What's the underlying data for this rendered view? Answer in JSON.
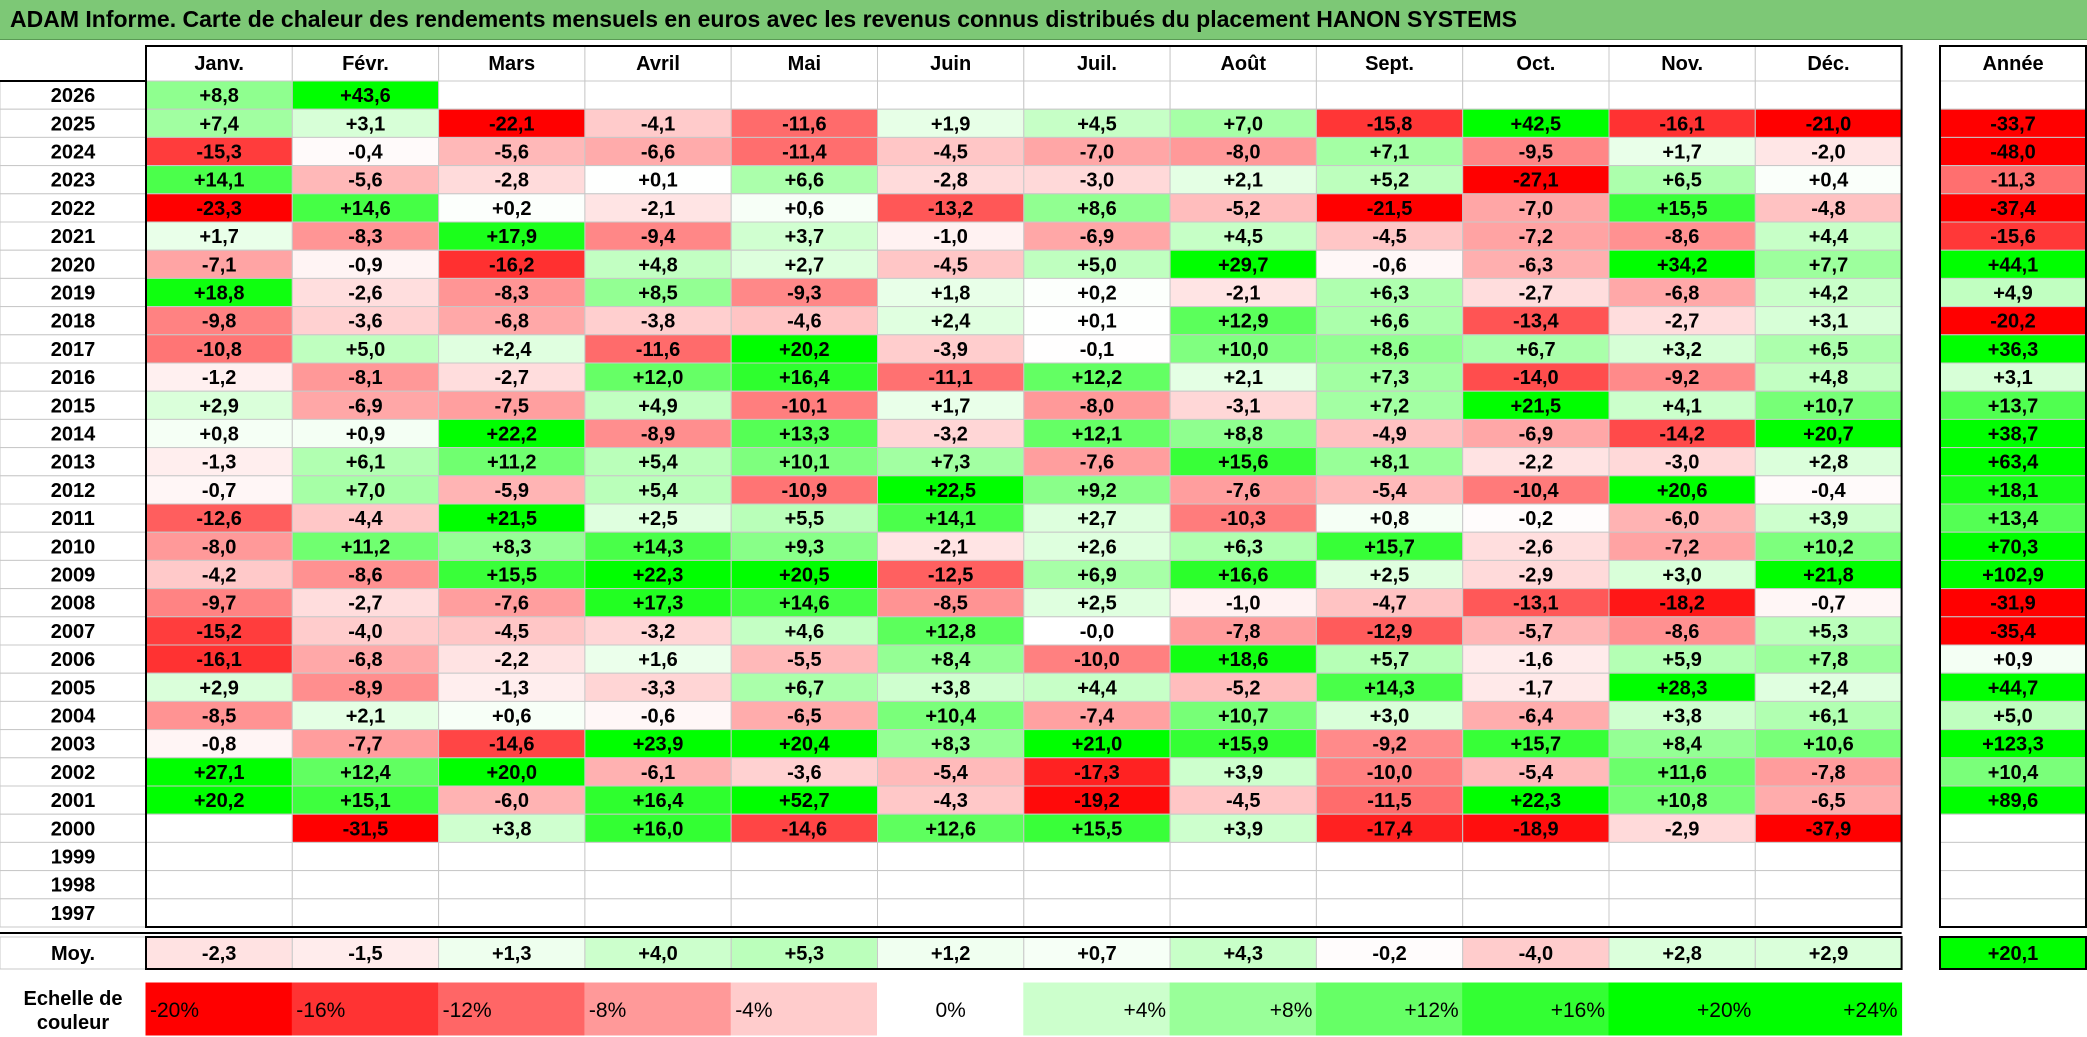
{
  "title": "ADAM Informe. Carte de chaleur des rendements mensuels en euros avec les revenus connus distribués du placement HANON SYSTEMS",
  "chart_data": {
    "type": "heatmap",
    "columns": [
      "Janv.",
      "Févr.",
      "Mars",
      "Avril",
      "Mai",
      "Juin",
      "Juil.",
      "Août",
      "Sept.",
      "Oct.",
      "Nov.",
      "Déc."
    ],
    "year_column_label": "Année",
    "rows": [
      {
        "year": "2026",
        "months": [
          8.8,
          43.6,
          null,
          null,
          null,
          null,
          null,
          null,
          null,
          null,
          null,
          null
        ],
        "annual": null
      },
      {
        "year": "2025",
        "months": [
          7.4,
          3.1,
          -22.1,
          -4.1,
          -11.6,
          1.9,
          4.5,
          7.0,
          -15.8,
          42.5,
          -16.1,
          -21.0
        ],
        "annual": -33.7
      },
      {
        "year": "2024",
        "months": [
          -15.3,
          -0.4,
          -5.6,
          -6.6,
          -11.4,
          -4.5,
          -7.0,
          -8.0,
          7.1,
          -9.5,
          1.7,
          -2.0
        ],
        "annual": -48.0
      },
      {
        "year": "2023",
        "months": [
          14.1,
          -5.6,
          -2.8,
          0.1,
          6.6,
          -2.8,
          -3.0,
          2.1,
          5.2,
          -27.1,
          6.5,
          0.4
        ],
        "annual": -11.3
      },
      {
        "year": "2022",
        "months": [
          -23.3,
          14.6,
          0.2,
          -2.1,
          0.6,
          -13.2,
          8.6,
          -5.2,
          -21.5,
          -7.0,
          15.5,
          -4.8
        ],
        "annual": -37.4
      },
      {
        "year": "2021",
        "months": [
          1.7,
          -8.3,
          17.9,
          -9.4,
          3.7,
          -1.0,
          -6.9,
          4.5,
          -4.5,
          -7.2,
          -8.6,
          4.4
        ],
        "annual": -15.6
      },
      {
        "year": "2020",
        "months": [
          -7.1,
          -0.9,
          -16.2,
          4.8,
          2.7,
          -4.5,
          5.0,
          29.7,
          -0.6,
          -6.3,
          34.2,
          7.7
        ],
        "annual": 44.1
      },
      {
        "year": "2019",
        "months": [
          18.8,
          -2.6,
          -8.3,
          8.5,
          -9.3,
          1.8,
          0.2,
          -2.1,
          6.3,
          -2.7,
          -6.8,
          4.2
        ],
        "annual": 4.9
      },
      {
        "year": "2018",
        "months": [
          -9.8,
          -3.6,
          -6.8,
          -3.8,
          -4.6,
          2.4,
          0.1,
          12.9,
          6.6,
          -13.4,
          -2.7,
          3.1
        ],
        "annual": -20.2
      },
      {
        "year": "2017",
        "months": [
          -10.8,
          5.0,
          2.4,
          -11.6,
          20.2,
          -3.9,
          -0.1,
          10.0,
          8.6,
          6.7,
          3.2,
          6.5
        ],
        "annual": 36.3
      },
      {
        "year": "2016",
        "months": [
          -1.2,
          -8.1,
          -2.7,
          12.0,
          16.4,
          -11.1,
          12.2,
          2.1,
          7.3,
          -14.0,
          -9.2,
          4.8
        ],
        "annual": 3.1
      },
      {
        "year": "2015",
        "months": [
          2.9,
          -6.9,
          -7.5,
          4.9,
          -10.1,
          1.7,
          -8.0,
          -3.1,
          7.2,
          21.5,
          4.1,
          10.7
        ],
        "annual": 13.7
      },
      {
        "year": "2014",
        "months": [
          0.8,
          0.9,
          22.2,
          -8.9,
          13.3,
          -3.2,
          12.1,
          8.8,
          -4.9,
          -6.9,
          -14.2,
          20.7
        ],
        "annual": 38.7
      },
      {
        "year": "2013",
        "months": [
          -1.3,
          6.1,
          11.2,
          5.4,
          10.1,
          7.3,
          -7.6,
          15.6,
          8.1,
          -2.2,
          -3.0,
          2.8
        ],
        "annual": 63.4
      },
      {
        "year": "2012",
        "months": [
          -0.7,
          7.0,
          -5.9,
          5.4,
          -10.9,
          22.5,
          9.2,
          -7.6,
          -5.4,
          -10.4,
          20.6,
          -0.4
        ],
        "annual": 18.1
      },
      {
        "year": "2011",
        "months": [
          -12.6,
          -4.4,
          21.5,
          2.5,
          5.5,
          14.1,
          2.7,
          -10.3,
          0.8,
          -0.2,
          -6.0,
          3.9
        ],
        "annual": 13.4
      },
      {
        "year": "2010",
        "months": [
          -8.0,
          11.2,
          8.3,
          14.3,
          9.3,
          -2.1,
          2.6,
          6.3,
          15.7,
          -2.6,
          -7.2,
          10.2
        ],
        "annual": 70.3
      },
      {
        "year": "2009",
        "months": [
          -4.2,
          -8.6,
          15.5,
          22.3,
          20.5,
          -12.5,
          6.9,
          16.6,
          2.5,
          -2.9,
          3.0,
          21.8
        ],
        "annual": 102.9
      },
      {
        "year": "2008",
        "months": [
          -9.7,
          -2.7,
          -7.6,
          17.3,
          14.6,
          -8.5,
          2.5,
          -1.0,
          -4.7,
          -13.1,
          -18.2,
          -0.7
        ],
        "annual": -31.9
      },
      {
        "year": "2007",
        "months": [
          -15.2,
          -4.0,
          -4.5,
          -3.2,
          4.6,
          12.8,
          "-0,0",
          -7.8,
          -12.9,
          -5.7,
          -8.6,
          5.3
        ],
        "annual": -35.4
      },
      {
        "year": "2006",
        "months": [
          -16.1,
          -6.8,
          -2.2,
          1.6,
          -5.5,
          8.4,
          -10.0,
          18.6,
          5.7,
          -1.6,
          5.9,
          7.8
        ],
        "annual": 0.9
      },
      {
        "year": "2005",
        "months": [
          2.9,
          -8.9,
          -1.3,
          -3.3,
          6.7,
          3.8,
          4.4,
          -5.2,
          14.3,
          -1.7,
          28.3,
          2.4
        ],
        "annual": 44.7
      },
      {
        "year": "2004",
        "months": [
          -8.5,
          2.1,
          0.6,
          -0.6,
          -6.5,
          10.4,
          -7.4,
          10.7,
          3.0,
          -6.4,
          3.8,
          6.1
        ],
        "annual": 5.0
      },
      {
        "year": "2003",
        "months": [
          -0.8,
          -7.7,
          -14.6,
          23.9,
          20.4,
          8.3,
          21.0,
          15.9,
          -9.2,
          15.7,
          8.4,
          10.6
        ],
        "annual": 123.3
      },
      {
        "year": "2002",
        "months": [
          27.1,
          12.4,
          20.0,
          -6.1,
          -3.6,
          -5.4,
          -17.3,
          3.9,
          -10.0,
          -5.4,
          11.6,
          -7.8
        ],
        "annual": 10.4
      },
      {
        "year": "2001",
        "months": [
          20.2,
          15.1,
          -6.0,
          16.4,
          52.7,
          -4.3,
          -19.2,
          -4.5,
          -11.5,
          22.3,
          10.8,
          -6.5
        ],
        "annual": 89.6
      },
      {
        "year": "2000",
        "months": [
          null,
          -31.5,
          3.8,
          16.0,
          -14.6,
          12.6,
          15.5,
          3.9,
          -17.4,
          -18.9,
          -2.9,
          -37.9
        ],
        "annual": null
      },
      {
        "year": "1999",
        "months": [
          null,
          null,
          null,
          null,
          null,
          null,
          null,
          null,
          null,
          null,
          null,
          null
        ],
        "annual": null
      },
      {
        "year": "1998",
        "months": [
          null,
          null,
          null,
          null,
          null,
          null,
          null,
          null,
          null,
          null,
          null,
          null
        ],
        "annual": null
      },
      {
        "year": "1997",
        "months": [
          null,
          null,
          null,
          null,
          null,
          null,
          null,
          null,
          null,
          null,
          null,
          null
        ],
        "annual": null
      }
    ],
    "average": {
      "label": "Moy.",
      "months": [
        -2.3,
        -1.5,
        1.3,
        4.0,
        5.3,
        1.2,
        0.7,
        4.3,
        -0.2,
        -4.0,
        2.8,
        2.9
      ],
      "annual": 20.1
    },
    "color_scale": {
      "label_line1": "Echelle de",
      "label_line2": "couleur",
      "stops": [
        {
          "label": "-20%",
          "value": -20,
          "color": "#ff0000"
        },
        {
          "label": "-16%",
          "value": -16,
          "color": "#ff3333"
        },
        {
          "label": "-12%",
          "value": -12,
          "color": "#ff6666"
        },
        {
          "label": "-8%",
          "value": -8,
          "color": "#ff9999"
        },
        {
          "label": "-4%",
          "value": -4,
          "color": "#ffcccc"
        },
        {
          "label": "0%",
          "value": 0,
          "color": "#ffffff"
        },
        {
          "label": "+4%",
          "value": 4,
          "color": "#ccffcc"
        },
        {
          "label": "+8%",
          "value": 8,
          "color": "#99ff99"
        },
        {
          "label": "+12%",
          "value": 12,
          "color": "#66ff66"
        },
        {
          "label": "+16%",
          "value": 16,
          "color": "#33ff33"
        },
        {
          "label": "+20%",
          "value": 20,
          "color": "#00ff00"
        },
        {
          "label": "+24%",
          "value": 24,
          "color": "#00ff00"
        }
      ]
    },
    "colors": {
      "title_bar": "#7dc876",
      "negative_max": "#ff0000",
      "positive_max": "#00ff00",
      "neutral": "#ffffff"
    }
  }
}
